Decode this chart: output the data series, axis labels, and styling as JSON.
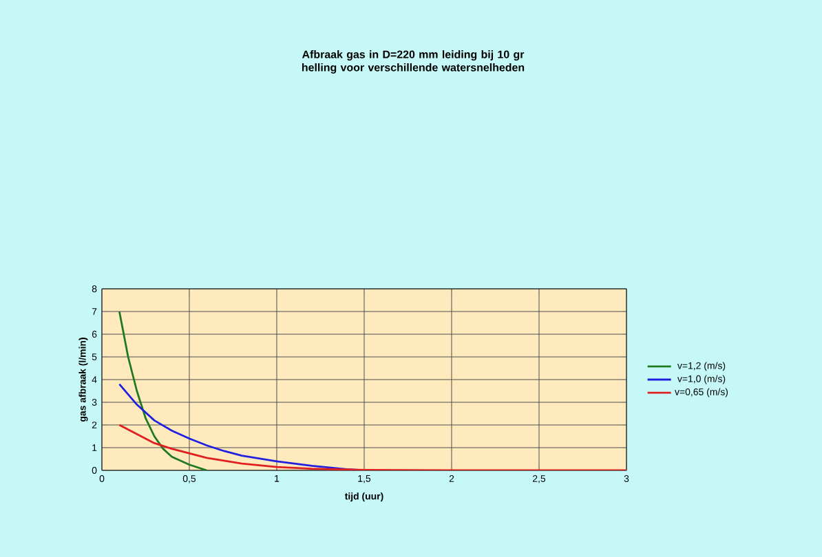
{
  "chart_data": {
    "type": "line",
    "title": "Afbraak gas in D=220 mm leiding bij 10 gr helling voor verschillende watersnelheden",
    "xlabel": "tijd (uur)",
    "ylabel": "gas afbraak (l/min)",
    "xlim": [
      0,
      3
    ],
    "ylim": [
      0,
      8
    ],
    "xticks": [
      0,
      {
        "value": 0.5,
        "label": "0,5"
      },
      1,
      {
        "value": 1.5,
        "label": "1,5"
      },
      2,
      {
        "value": 2.5,
        "label": "2,5"
      },
      3
    ],
    "yticks": [
      0,
      1,
      2,
      3,
      4,
      5,
      6,
      7,
      8
    ],
    "grid": true,
    "legend": "right",
    "marker": "none",
    "line_style": "solid",
    "series": [
      {
        "name": "v=1,2 (m/s)",
        "color": "#1f7a1f",
        "x": [
          0.1,
          0.15,
          0.2,
          0.25,
          0.3,
          0.35,
          0.4,
          0.5,
          0.6
        ],
        "values": [
          7.0,
          5.0,
          3.5,
          2.3,
          1.5,
          0.95,
          0.6,
          0.25,
          0.0
        ]
      },
      {
        "name": "v=1,0 (m/s)",
        "color": "#2020e0",
        "x": [
          0.1,
          0.2,
          0.3,
          0.4,
          0.5,
          0.6,
          0.7,
          0.8,
          1.0,
          1.2,
          1.4,
          1.5
        ],
        "values": [
          3.8,
          2.9,
          2.2,
          1.75,
          1.4,
          1.1,
          0.85,
          0.65,
          0.4,
          0.2,
          0.05,
          0.0
        ]
      },
      {
        "name": "v=0,65 (m/s)",
        "color": "#e02020",
        "x": [
          0.1,
          0.2,
          0.3,
          0.4,
          0.5,
          0.6,
          0.8,
          1.0,
          1.2,
          1.5,
          2.0,
          3.0
        ],
        "values": [
          2.0,
          1.6,
          1.2,
          0.95,
          0.75,
          0.55,
          0.3,
          0.15,
          0.07,
          0.02,
          0.0,
          0.0
        ]
      }
    ]
  }
}
